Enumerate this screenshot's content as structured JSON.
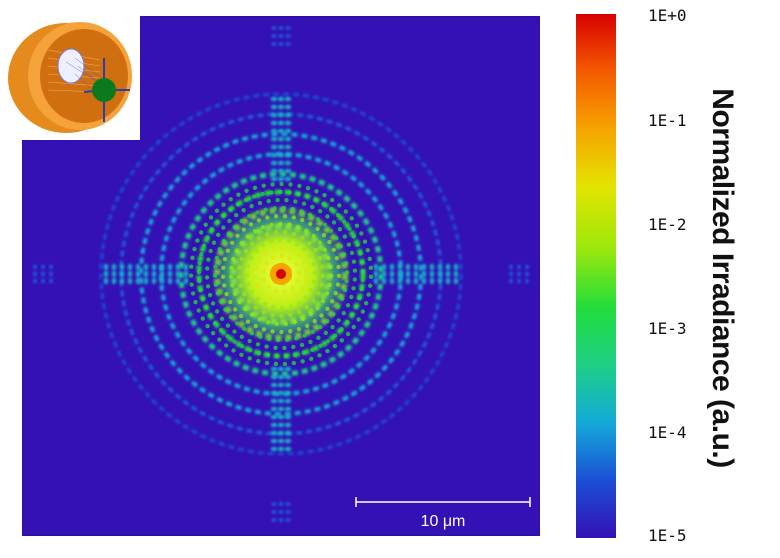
{
  "chart_data": {
    "type": "heatmap",
    "scale": "log",
    "colorbar": {
      "label": "Normalized Irradiance (a.u.)",
      "ticks": [
        "1E+0",
        "1E-1",
        "1E-2",
        "1E-3",
        "1E-4",
        "1E-5"
      ],
      "range": [
        1e-05,
        1
      ],
      "colors": [
        "#3411b5",
        "#1b4fd6",
        "#14aad8",
        "#1ccf85",
        "#22dd3b",
        "#9ae80d",
        "#e3e400",
        "#f6a400",
        "#f45b00",
        "#d80000"
      ]
    },
    "scale_bar": {
      "label": "10 μm"
    },
    "background_color": "#3411b5"
  }
}
